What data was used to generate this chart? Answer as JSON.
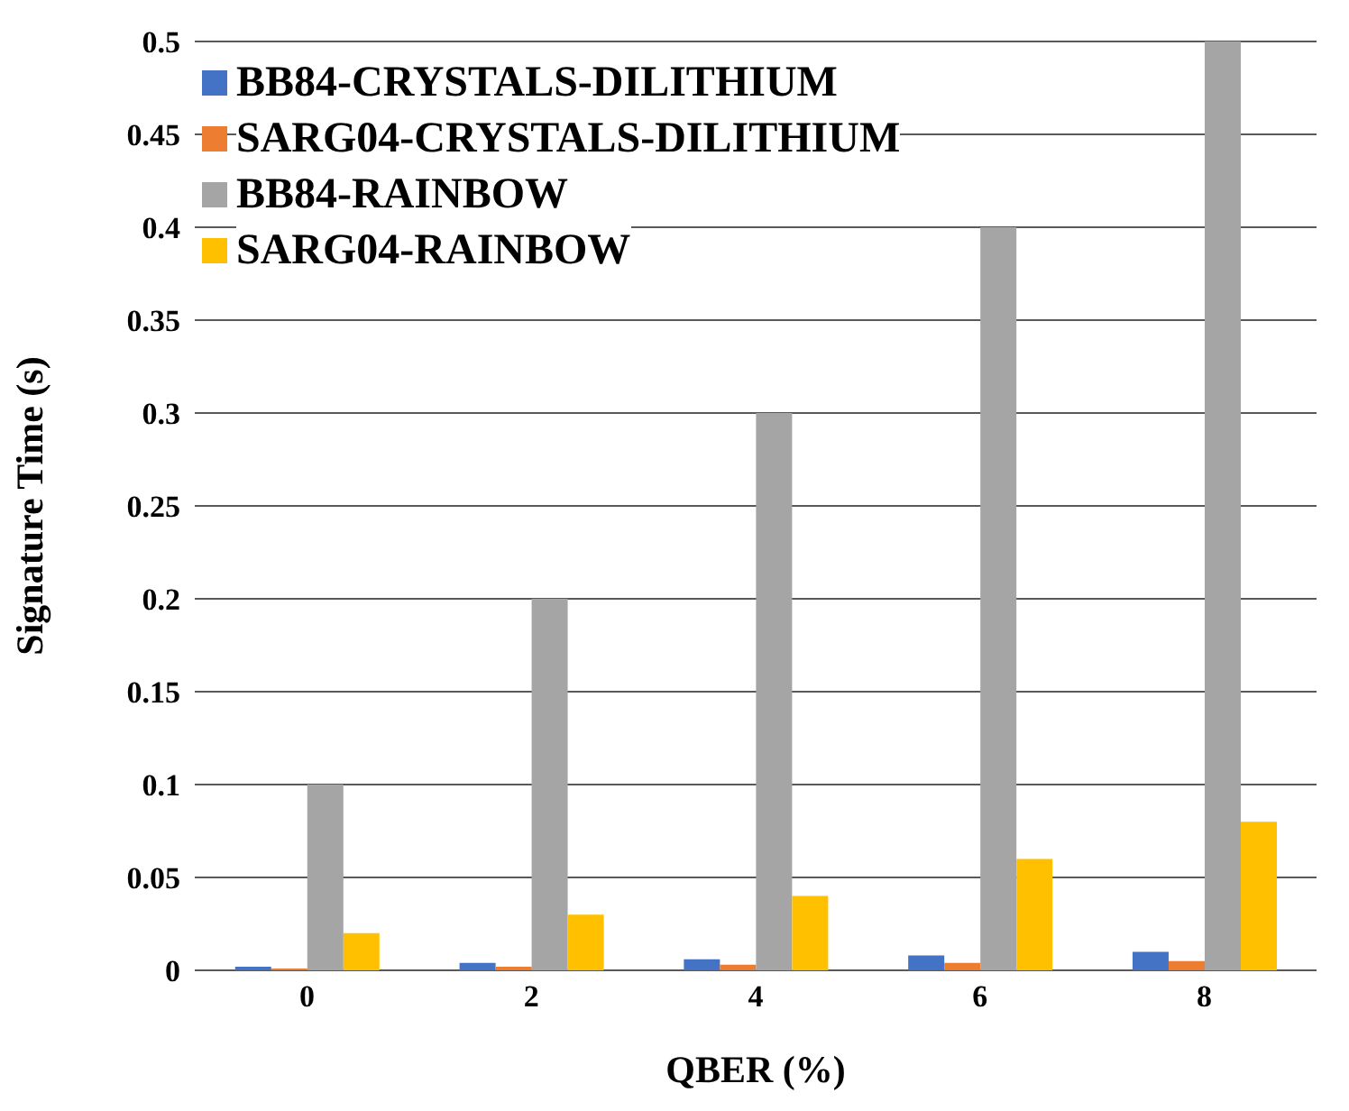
{
  "chart_data": {
    "type": "bar",
    "xlabel": "QBER (%)",
    "ylabel": "Signature Time (s)",
    "categories": [
      "0",
      "2",
      "4",
      "6",
      "8"
    ],
    "series": [
      {
        "name": "BB84-CRYSTALS-DILITHIUM",
        "color": "#4472c4",
        "values": [
          0.002,
          0.004,
          0.006,
          0.008,
          0.01
        ]
      },
      {
        "name": "SARG04-CRYSTALS-DILITHIUM",
        "color": "#ed7d31",
        "values": [
          0.001,
          0.002,
          0.003,
          0.004,
          0.005
        ]
      },
      {
        "name": "BB84-RAINBOW",
        "color": "#a5a5a5",
        "values": [
          0.1,
          0.2,
          0.3,
          0.4,
          0.5
        ]
      },
      {
        "name": "SARG04-RAINBOW",
        "color": "#ffc000",
        "values": [
          0.02,
          0.03,
          0.04,
          0.06,
          0.08
        ]
      }
    ],
    "ylim": [
      0,
      0.5
    ],
    "yticks": [
      0,
      0.05,
      0.1,
      0.15,
      0.2,
      0.25,
      0.3,
      0.35,
      0.4,
      0.45,
      0.5
    ],
    "grid": "y",
    "legend": "top left"
  }
}
